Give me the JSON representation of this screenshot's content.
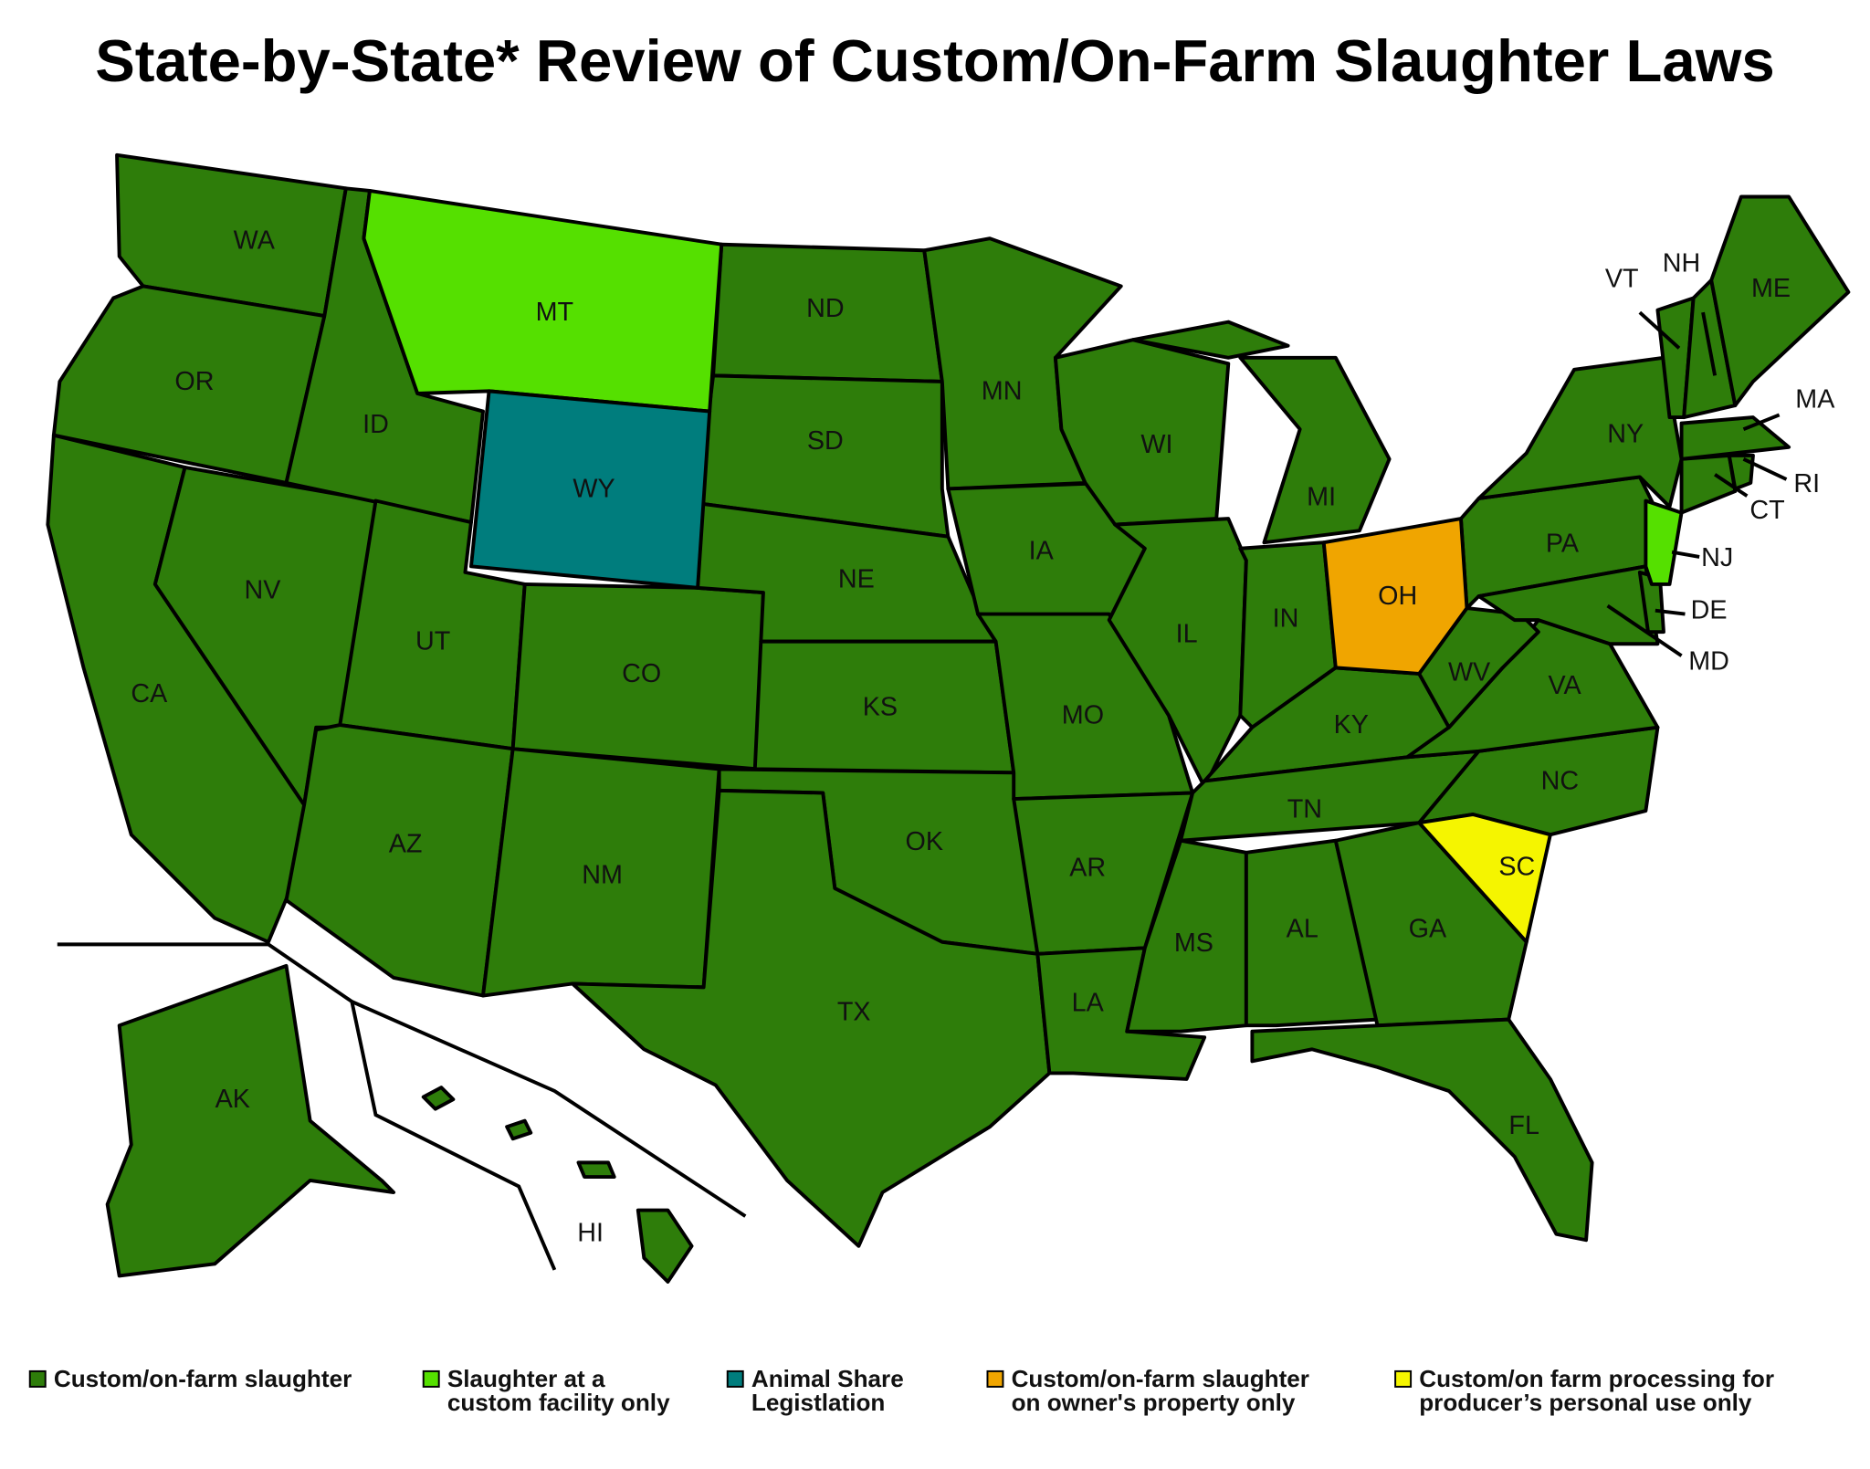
{
  "title": "State-by-State* Review of Custom/On-Farm Slaughter Laws",
  "legend": [
    {
      "color": "#2e7d0a",
      "label": [
        "Custom/on-farm slaughter"
      ],
      "states": [
        "WA",
        "OR",
        "CA",
        "NV",
        "ID",
        "UT",
        "AZ",
        "CO",
        "NM",
        "ND",
        "SD",
        "NE",
        "KS",
        "OK",
        "TX",
        "MN",
        "IA",
        "MO",
        "AR",
        "LA",
        "WI",
        "IL",
        "MI",
        "IN",
        "KY",
        "TN",
        "MS",
        "AL",
        "GA",
        "FL",
        "NC",
        "VA",
        "WV",
        "PA",
        "NY",
        "MD",
        "DE",
        "CT",
        "RI",
        "MA",
        "VT",
        "NH",
        "ME",
        "AK",
        "HI"
      ]
    },
    {
      "color": "#55e000",
      "label": [
        "Slaughter at a",
        "custom facility only"
      ],
      "states": [
        "MT",
        "NJ"
      ]
    },
    {
      "color": "#007d7d",
      "label": [
        "Animal Share",
        "Legistlation"
      ],
      "states": [
        "WY"
      ]
    },
    {
      "color": "#f0a500",
      "label": [
        "Custom/on-farm slaughter",
        "on owner's property only"
      ],
      "states": [
        "OH"
      ]
    },
    {
      "color": "#f5f500",
      "label": [
        "Custom/on farm processing for",
        "producer’s personal use only"
      ],
      "states": [
        "SC"
      ]
    }
  ]
}
